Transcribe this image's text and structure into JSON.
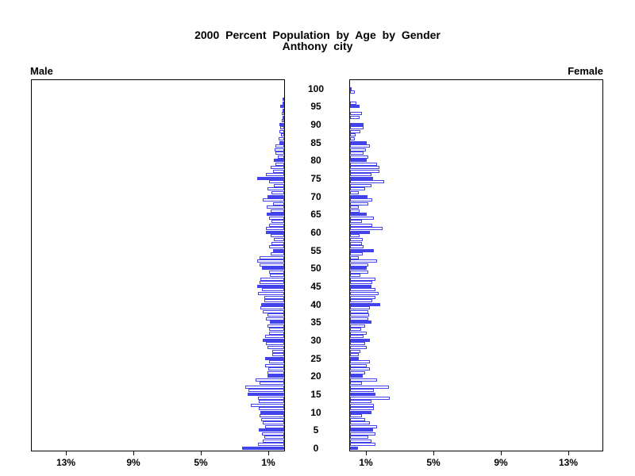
{
  "title": {
    "line1": "2000 Percent Population by Age by Gender",
    "line2": "Anthony city"
  },
  "panel_labels": {
    "left": "Male",
    "right": "Female"
  },
  "colors": {
    "bar_blue": "#4343ee",
    "axis_black": "#000000",
    "background": "#ffffff"
  },
  "chart_data": {
    "type": "bar",
    "subtype": "population-pyramid",
    "title": "2000 Percent Population by Age by Gender",
    "subtitle": "Anthony city",
    "orientation": "horizontal, mirrored panels (Male left, Female right)",
    "bar_style_rule": "ages divisible by 5 are solid blue; other ages are white with blue outline",
    "x_axis": {
      "unit": "percent of population",
      "range": [
        0,
        15.2
      ],
      "ticks_percent": [
        13,
        9,
        5,
        1
      ],
      "male_tick_labels": [
        "13%",
        "9%",
        "5%",
        "1%"
      ],
      "female_tick_labels": [
        "1%",
        "5%",
        "9%",
        "13%"
      ],
      "grid": false
    },
    "y_axis": {
      "unit": "age in years",
      "range": [
        0,
        100
      ],
      "ticks": [
        0,
        5,
        10,
        15,
        20,
        25,
        30,
        35,
        40,
        45,
        50,
        55,
        60,
        65,
        70,
        75,
        80,
        85,
        90,
        95,
        100
      ]
    },
    "ages_by_index": "array index equals age in years (0..100)",
    "series": [
      {
        "name": "Male",
        "values": [
          2.5,
          1.55,
          1.25,
          1.2,
          1.3,
          1.5,
          1.15,
          1.25,
          1.35,
          1.45,
          1.4,
          1.5,
          2.0,
          1.5,
          1.55,
          2.15,
          2.1,
          2.3,
          1.45,
          1.7,
          1.0,
          1.0,
          0.95,
          1.15,
          0.9,
          1.15,
          0.7,
          0.7,
          1.0,
          1.1,
          1.25,
          1.15,
          0.9,
          0.9,
          1.0,
          0.85,
          1.1,
          1.0,
          1.25,
          1.4,
          1.35,
          1.2,
          1.2,
          1.55,
          1.3,
          1.6,
          1.45,
          1.4,
          0.85,
          0.9,
          1.3,
          1.45,
          1.6,
          1.45,
          0.8,
          0.65,
          0.9,
          0.75,
          0.6,
          0.8,
          1.1,
          1.1,
          0.9,
          0.75,
          0.9,
          1.05,
          0.8,
          1.05,
          0.65,
          1.25,
          1.0,
          0.75,
          1.0,
          0.6,
          0.9,
          1.6,
          1.1,
          0.65,
          0.8,
          0.5,
          0.6,
          0.4,
          0.5,
          0.55,
          0.5,
          0.3,
          0.35,
          0.2,
          0.3,
          0.25,
          0.3,
          0.15,
          0.05,
          0.15,
          0.1,
          0.25,
          0.1,
          0.05,
          0,
          0,
          0
        ]
      },
      {
        "name": "Female",
        "values": [
          0.45,
          1.5,
          1.25,
          1.1,
          1.5,
          1.35,
          1.6,
          1.2,
          0.9,
          0.7,
          1.25,
          1.4,
          1.4,
          1.25,
          2.35,
          1.5,
          1.4,
          2.3,
          0.7,
          1.6,
          0.75,
          0.9,
          1.2,
          1.0,
          1.2,
          0.5,
          0.5,
          0.6,
          1.0,
          0.9,
          1.2,
          0.8,
          1.0,
          0.65,
          0.9,
          1.25,
          1.1,
          1.15,
          1.1,
          1.2,
          1.8,
          1.3,
          1.5,
          1.7,
          1.5,
          1.25,
          1.3,
          1.5,
          0.6,
          1.1,
          1.0,
          1.1,
          1.6,
          0.5,
          0.75,
          1.4,
          0.8,
          0.7,
          0.75,
          0.55,
          1.2,
          1.95,
          1.3,
          0.7,
          1.4,
          1.0,
          0.55,
          0.5,
          1.1,
          1.3,
          1.05,
          0.5,
          0.9,
          1.25,
          2.05,
          1.35,
          1.25,
          1.75,
          1.75,
          1.6,
          1.0,
          1.1,
          0.8,
          0.95,
          1.2,
          1.0,
          0.3,
          0.35,
          0.6,
          0.8,
          0.8,
          0,
          0.55,
          0.7,
          0,
          0.55,
          0.4,
          0,
          0,
          0.3,
          0.07
        ]
      }
    ],
    "legend_position": "none"
  }
}
